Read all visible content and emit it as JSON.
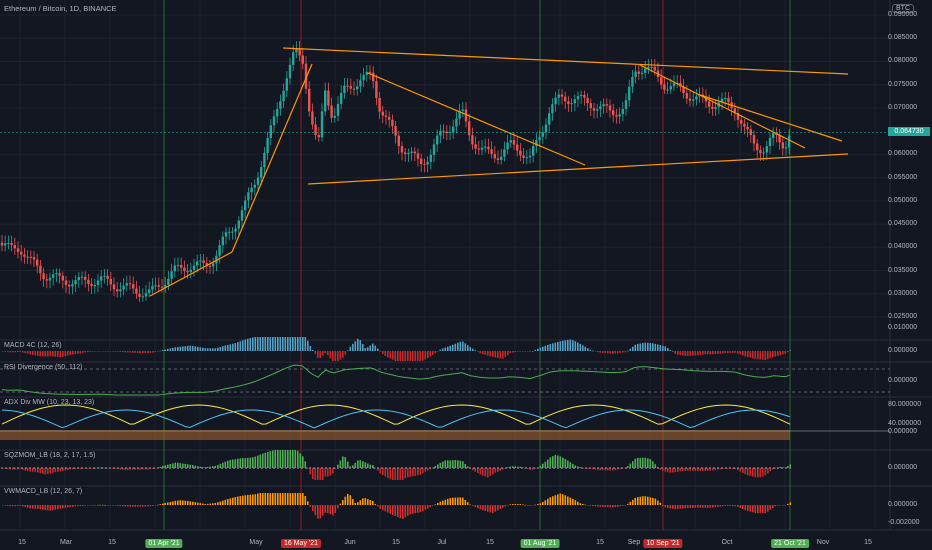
{
  "symbol_title": "Ethereum / Bitcoin, 1D, BINANCE",
  "currency_badge": "BTC",
  "current_price_label": "0.064730",
  "price_ticks": [
    "0.090000",
    "0.085000",
    "0.080000",
    "0.075000",
    "0.070000",
    "0.060000",
    "0.055000",
    "0.050000",
    "0.045000",
    "0.040000",
    "0.035000",
    "0.030000",
    "0.025000"
  ],
  "panes": [
    {
      "label": "MACD 4C (12, 26)",
      "ticks": [
        "0.010000",
        "0.000000"
      ]
    },
    {
      "label": "RSI Divergence (50, 112)",
      "ticks": [
        "0.000000"
      ]
    },
    {
      "label": "ADX Div MW (10, 23, 13, 23)",
      "ticks": [
        "80.000000",
        "40.000000",
        "0.000000"
      ]
    },
    {
      "label": "SQZMOM_LB (18, 2, 17, 1.5)",
      "ticks": [
        "0.000000"
      ]
    },
    {
      "label": "VWMACD_LB (12, 26, 7)",
      "ticks": [
        "0.000000",
        "-0.002000"
      ]
    }
  ],
  "date_ticks": [
    "15",
    "Mar",
    "15",
    "May",
    "Jun",
    "15",
    "Jul",
    "15",
    "15",
    "Sep",
    "Oct",
    "Nov",
    "15"
  ],
  "date_badges": [
    {
      "label": "01 Apr '21",
      "color": "#4caf50"
    },
    {
      "label": "16 May '21",
      "color": "#c62828"
    },
    {
      "label": "01 Aug '21",
      "color": "#4caf50"
    },
    {
      "label": "10 Sep '21",
      "color": "#c62828"
    },
    {
      "label": "21 Oct '21",
      "color": "#4caf50"
    }
  ],
  "colors": {
    "up": "#26a69a",
    "down": "#ef5350",
    "trendline": "#ff9800",
    "bg": "#131722"
  },
  "chart_data": {
    "type": "candlestick",
    "y_range": [
      0.025,
      0.09
    ],
    "key_levels": [
      0.0829,
      0.0539,
      0.0647
    ],
    "vertical_markers": [
      "01 Apr '21",
      "16 May '21",
      "01 Aug '21",
      "10 Sep '21",
      "21 Oct '21"
    ]
  }
}
